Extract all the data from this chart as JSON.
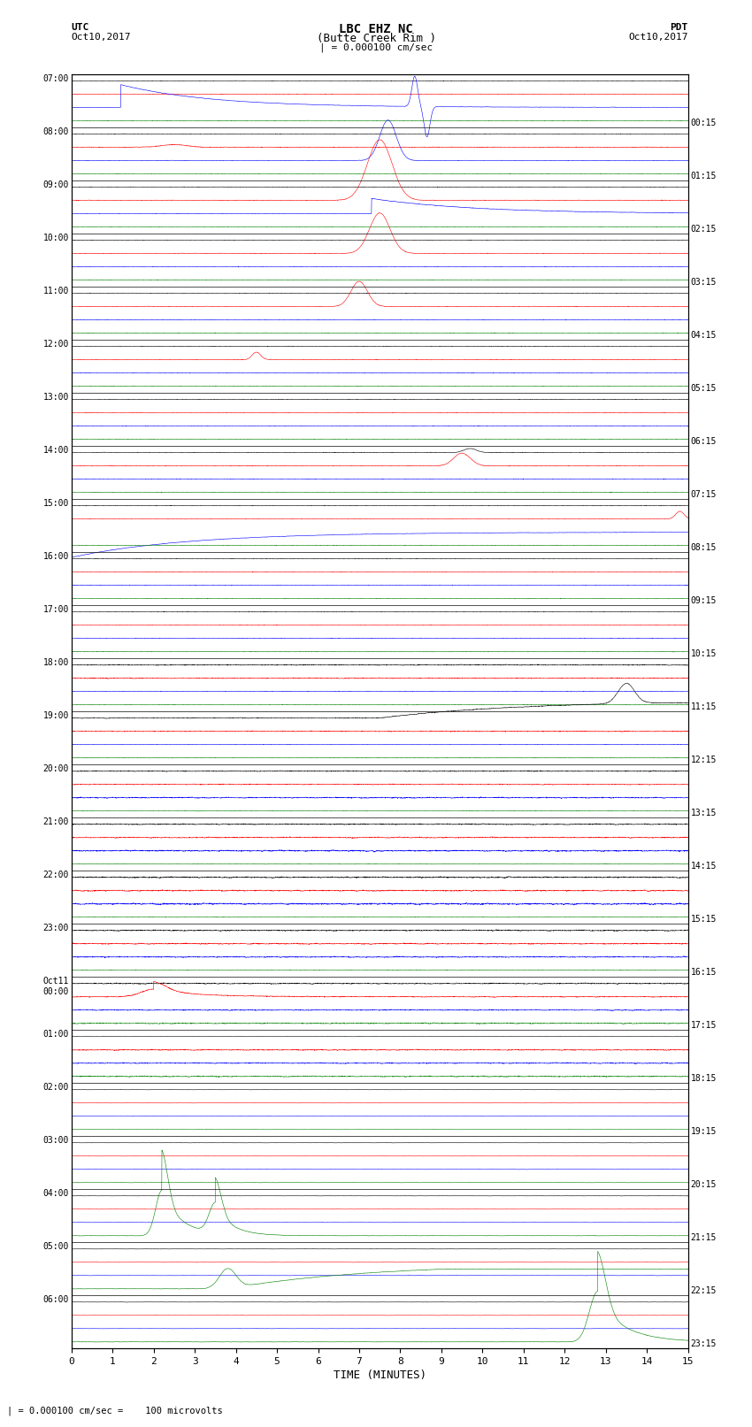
{
  "title_line1": "LBC EHZ NC",
  "title_line2": "(Butte Creek Rim )",
  "scale_label": "| = 0.000100 cm/sec",
  "left_label_top": "UTC",
  "left_label_date": "Oct10,2017",
  "right_label_top": "PDT",
  "right_label_date": "Oct10,2017",
  "xlabel": "TIME (MINUTES)",
  "bottom_note": "| = 0.000100 cm/sec =    100 microvolts",
  "fig_width": 8.5,
  "fig_height": 16.13,
  "dpi": 100,
  "bgcolor": "#ffffff",
  "xmin": 0,
  "xmax": 15,
  "xticks": [
    0,
    1,
    2,
    3,
    4,
    5,
    6,
    7,
    8,
    9,
    10,
    11,
    12,
    13,
    14,
    15
  ],
  "n_groups": 24,
  "left_times": [
    "07:00",
    "08:00",
    "09:00",
    "10:00",
    "11:00",
    "12:00",
    "13:00",
    "14:00",
    "15:00",
    "16:00",
    "17:00",
    "18:00",
    "19:00",
    "20:00",
    "21:00",
    "22:00",
    "23:00",
    "Oct11\n00:00",
    "01:00",
    "02:00",
    "03:00",
    "04:00",
    "05:00",
    "06:00"
  ],
  "right_times": [
    "00:15",
    "01:15",
    "02:15",
    "03:15",
    "04:15",
    "05:15",
    "06:15",
    "07:15",
    "08:15",
    "09:15",
    "10:15",
    "11:15",
    "12:15",
    "13:15",
    "14:15",
    "15:15",
    "16:15",
    "17:15",
    "18:15",
    "19:15",
    "20:15",
    "21:15",
    "22:15",
    "23:15"
  ]
}
